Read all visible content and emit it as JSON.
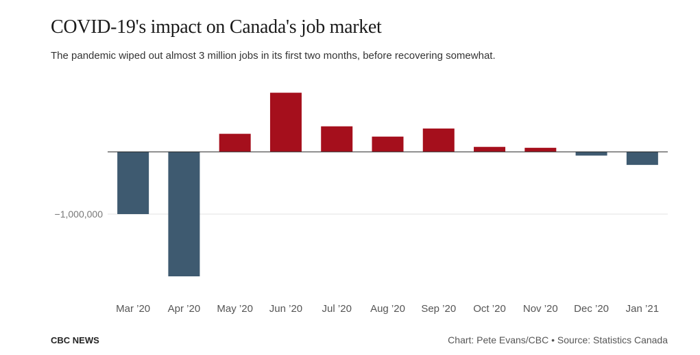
{
  "title": "COVID-19's impact on Canada's job market",
  "subtitle": "The pandemic wiped out almost 3 million jobs in its first two months, before recovering somewhat.",
  "footer": {
    "brand": "CBC NEWS",
    "credit": "Chart: Pete Evans/CBC • Source: Statistics Canada"
  },
  "colors": {
    "positive": "#a50f1c",
    "negative": "#3e5a70"
  },
  "chart_data": {
    "type": "bar",
    "title": "COVID-19's impact on Canada's job market",
    "subtitle": "The pandemic wiped out almost 3 million jobs in its first two months, before recovering somewhat.",
    "xlabel": "",
    "ylabel": "",
    "categories": [
      "Mar ’20",
      "Apr ’20",
      "May ’20",
      "Jun ’20",
      "Jul ’20",
      "Aug ’20",
      "Sep ’20",
      "Oct ’20",
      "Nov ’20",
      "Dec ’20",
      "Jan ’21"
    ],
    "values": [
      -1000000,
      -2000000,
      290000,
      950000,
      410000,
      245000,
      375000,
      80000,
      65000,
      -60000,
      -210000
    ],
    "y_ticks": [
      -1000000
    ],
    "y_tick_labels": [
      "−1,000,000"
    ],
    "ylim": [
      -2350000,
      1400000
    ],
    "grid": true
  }
}
